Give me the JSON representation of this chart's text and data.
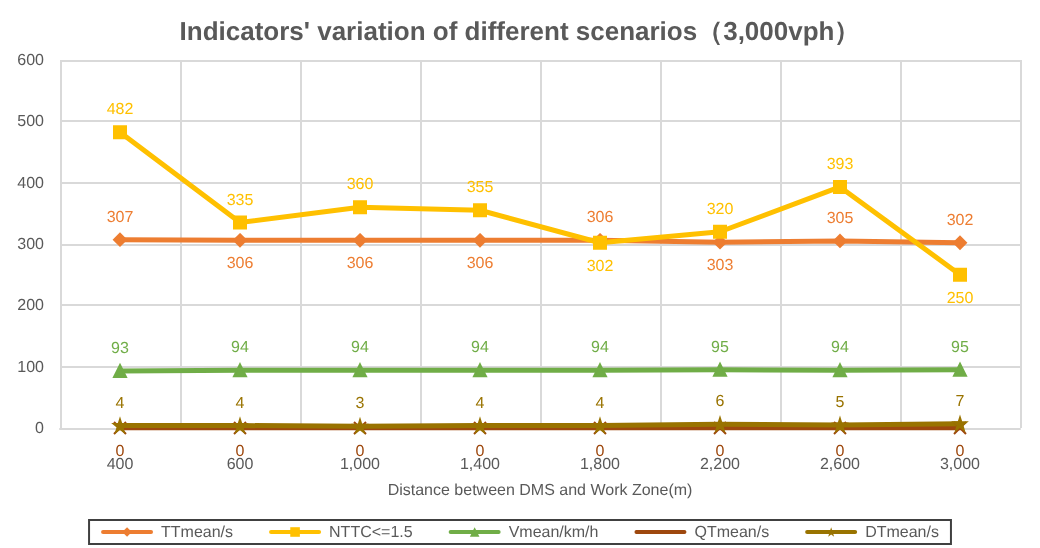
{
  "chart_data": {
    "type": "line",
    "title": "Indicators' variation of different scenarios（3,000vph）",
    "xlabel": "Distance between DMS and Work Zone(m)",
    "categories": [
      "400",
      "600",
      "1,000",
      "1,400",
      "1,800",
      "2,200",
      "2,600",
      "3,000"
    ],
    "series": [
      {
        "name": "TTmean/s",
        "color": "#ed7d31",
        "marker": "diamond",
        "values": [
          307,
          306,
          306,
          306,
          306,
          303,
          305,
          302
        ]
      },
      {
        "name": "NTTC<=1.5",
        "color": "#ffc000",
        "marker": "square",
        "values": [
          482,
          335,
          360,
          355,
          302,
          320,
          393,
          250
        ]
      },
      {
        "name": "Vmean/km/h",
        "color": "#70ad47",
        "marker": "triangle",
        "values": [
          93,
          94,
          94,
          94,
          94,
          95,
          94,
          95
        ]
      },
      {
        "name": "QTmean/s",
        "color": "#9e480e",
        "marker": "cross",
        "values": [
          0,
          0,
          0,
          0,
          0,
          0,
          0,
          0
        ]
      },
      {
        "name": "DTmean/s",
        "color": "#997300",
        "marker": "star",
        "values": [
          4,
          4,
          3,
          4,
          4,
          6,
          5,
          7
        ]
      }
    ],
    "ylim": [
      0,
      600
    ],
    "yticks": [
      0,
      100,
      200,
      300,
      400,
      500,
      600
    ],
    "grid": true,
    "legend": "bottom",
    "data_labels": true,
    "line_style": "solid"
  }
}
